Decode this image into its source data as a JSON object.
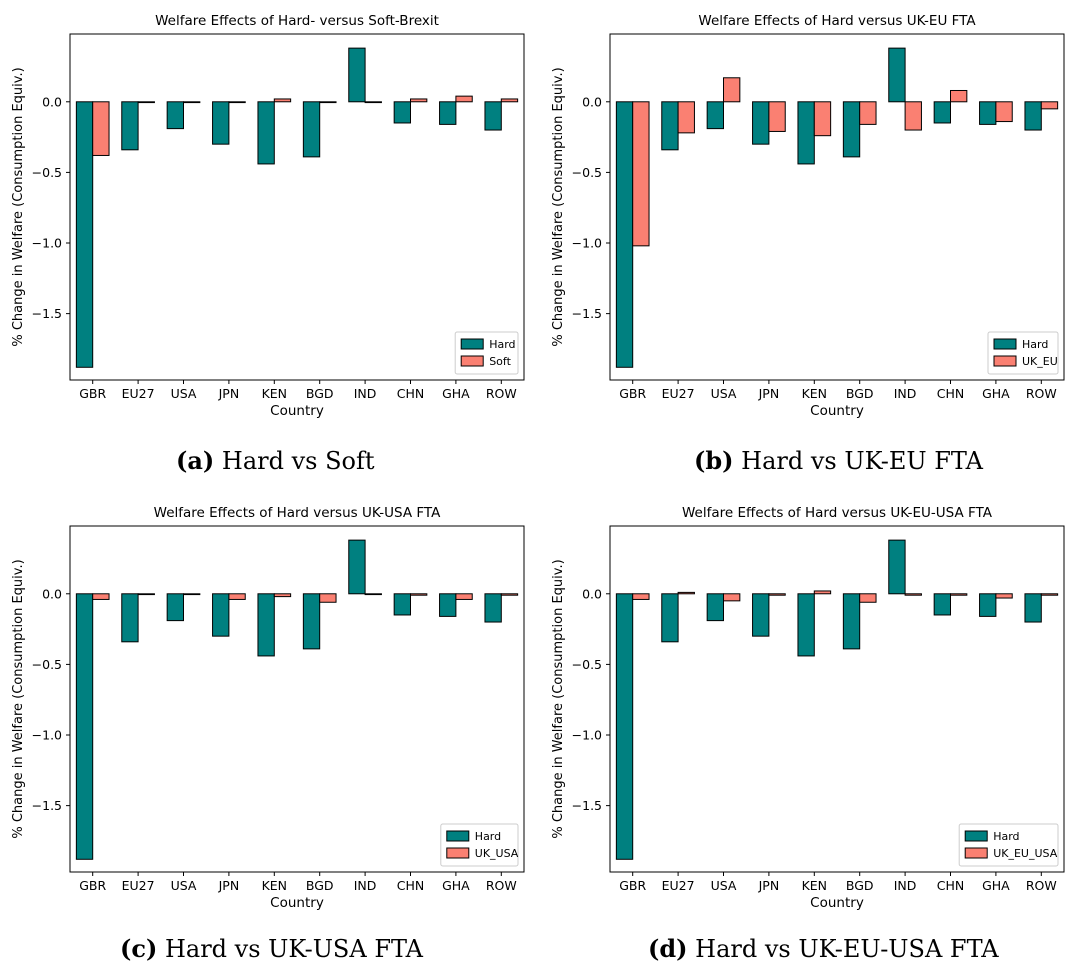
{
  "colors": {
    "hard": "#008080",
    "other": "#fa8072",
    "edge": "#000000"
  },
  "captions": [
    {
      "letter": "(a)",
      "text": "Hard vs Soft"
    },
    {
      "letter": "(b)",
      "text": "Hard vs UK-EU FTA"
    },
    {
      "letter": "(c)",
      "text": "Hard vs UK-USA FTA"
    },
    {
      "letter": "(d)",
      "text": "Hard vs UK-EU-USA FTA"
    }
  ],
  "chart_data": [
    {
      "type": "bar",
      "title": "Welfare Effects of Hard- versus Soft-Brexit",
      "xlabel": "Country",
      "ylabel": "% Change in Welfare (Consumption Equiv.)",
      "categories": [
        "GBR",
        "EU27",
        "USA",
        "JPN",
        "KEN",
        "BGD",
        "IND",
        "CHN",
        "GHA",
        "ROW"
      ],
      "series": [
        {
          "name": "Hard",
          "values": [
            -1.88,
            -0.34,
            -0.19,
            -0.3,
            -0.44,
            -0.39,
            0.38,
            -0.15,
            -0.16,
            -0.2
          ]
        },
        {
          "name": "Soft",
          "values": [
            -0.38,
            0.0,
            0.0,
            0.0,
            0.02,
            0.0,
            0.0,
            0.02,
            0.04,
            0.02
          ]
        }
      ],
      "ylim": [
        -1.97,
        0.48
      ],
      "yticks": [
        0.0,
        -0.5,
        -1.0,
        -1.5
      ],
      "ytick_labels": [
        "0.0",
        "−0.5",
        "−1.0",
        "−1.5"
      ],
      "legend": "bottom-right"
    },
    {
      "type": "bar",
      "title": "Welfare Effects of Hard versus UK-EU FTA",
      "xlabel": "Country",
      "ylabel": "% Change in Welfare (Consumption Equiv.)",
      "categories": [
        "GBR",
        "EU27",
        "USA",
        "JPN",
        "KEN",
        "BGD",
        "IND",
        "CHN",
        "GHA",
        "ROW"
      ],
      "series": [
        {
          "name": "Hard",
          "values": [
            -1.88,
            -0.34,
            -0.19,
            -0.3,
            -0.44,
            -0.39,
            0.38,
            -0.15,
            -0.16,
            -0.2
          ]
        },
        {
          "name": "UK_EU",
          "values": [
            -1.02,
            -0.22,
            0.17,
            -0.21,
            -0.24,
            -0.16,
            -0.2,
            0.08,
            -0.14,
            -0.05
          ]
        }
      ],
      "ylim": [
        -1.97,
        0.48
      ],
      "yticks": [
        0.0,
        -0.5,
        -1.0,
        -1.5
      ],
      "ytick_labels": [
        "0.0",
        "−0.5",
        "−1.0",
        "−1.5"
      ],
      "legend": "bottom-right"
    },
    {
      "type": "bar",
      "title": "Welfare Effects of Hard versus UK-USA FTA",
      "xlabel": "Country",
      "ylabel": "% Change in Welfare (Consumption Equiv.)",
      "categories": [
        "GBR",
        "EU27",
        "USA",
        "JPN",
        "KEN",
        "BGD",
        "IND",
        "CHN",
        "GHA",
        "ROW"
      ],
      "series": [
        {
          "name": "Hard",
          "values": [
            -1.88,
            -0.34,
            -0.19,
            -0.3,
            -0.44,
            -0.39,
            0.38,
            -0.15,
            -0.16,
            -0.2
          ]
        },
        {
          "name": "UK_USA",
          "values": [
            -0.04,
            0.0,
            0.0,
            -0.04,
            -0.02,
            -0.06,
            0.0,
            -0.01,
            -0.04,
            -0.01
          ]
        }
      ],
      "ylim": [
        -1.97,
        0.48
      ],
      "yticks": [
        0.0,
        -0.5,
        -1.0,
        -1.5
      ],
      "ytick_labels": [
        "0.0",
        "−0.5",
        "−1.0",
        "−1.5"
      ],
      "legend": "bottom-right"
    },
    {
      "type": "bar",
      "title": "Welfare Effects of Hard versus UK-EU-USA FTA",
      "xlabel": "Country",
      "ylabel": "% Change in Welfare (Consumption Equiv.)",
      "categories": [
        "GBR",
        "EU27",
        "USA",
        "JPN",
        "KEN",
        "BGD",
        "IND",
        "CHN",
        "GHA",
        "ROW"
      ],
      "series": [
        {
          "name": "Hard",
          "values": [
            -1.88,
            -0.34,
            -0.19,
            -0.3,
            -0.44,
            -0.39,
            0.38,
            -0.15,
            -0.16,
            -0.2
          ]
        },
        {
          "name": "UK_EU_USA",
          "values": [
            -0.04,
            0.01,
            -0.05,
            -0.01,
            0.02,
            -0.06,
            -0.01,
            -0.01,
            -0.03,
            -0.01
          ]
        }
      ],
      "ylim": [
        -1.97,
        0.48
      ],
      "yticks": [
        0.0,
        -0.5,
        -1.0,
        -1.5
      ],
      "ytick_labels": [
        "0.0",
        "−0.5",
        "−1.0",
        "−1.5"
      ],
      "legend": "bottom-right"
    }
  ]
}
